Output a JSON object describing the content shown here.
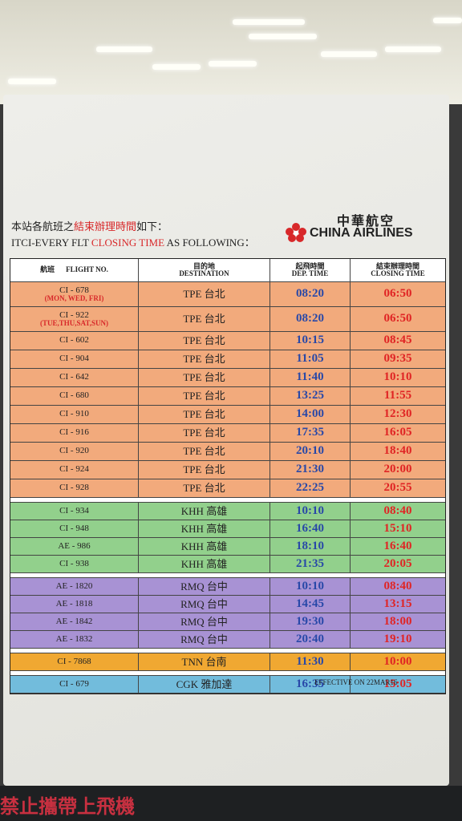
{
  "header": {
    "line1": [
      "本站各航班之",
      "結束辦理時間",
      "如下："
    ],
    "line2": [
      "ITCI-EVERY FLT ",
      "CLOSING TIME",
      " AS FOLLOWING："
    ]
  },
  "logo": {
    "zh": "中華航空",
    "en": "CHINA AIRLINES"
  },
  "table": {
    "columns": [
      {
        "zh": "航班",
        "en": "FLIGHT NO."
      },
      {
        "zh": "目的地",
        "en": "DESTINATION"
      },
      {
        "zh": "起飛時間",
        "en": "DEP. TIME"
      },
      {
        "zh": "結束辦理時間",
        "en": "CLOSING TIME"
      }
    ],
    "groups": [
      {
        "color": "#f2aa7c",
        "rows": [
          {
            "flight": "CI - 678",
            "note": "(MON, WED, FRI)",
            "dest": "TPE 台北",
            "dep": "08:20",
            "close": "06:50"
          },
          {
            "flight": "CI - 922",
            "note": "(TUE,THU,SAT,SUN)",
            "dest": "TPE 台北",
            "dep": "08:20",
            "close": "06:50"
          },
          {
            "flight": "CI - 602",
            "dest": "TPE 台北",
            "dep": "10:15",
            "close": "08:45"
          },
          {
            "flight": "CI - 904",
            "dest": "TPE 台北",
            "dep": "11:05",
            "close": "09:35"
          },
          {
            "flight": "CI - 642",
            "dest": "TPE 台北",
            "dep": "11:40",
            "close": "10:10"
          },
          {
            "flight": "CI - 680",
            "dest": "TPE 台北",
            "dep": "13:25",
            "close": "11:55"
          },
          {
            "flight": "CI - 910",
            "dest": "TPE 台北",
            "dep": "14:00",
            "close": "12:30"
          },
          {
            "flight": "CI - 916",
            "dest": "TPE 台北",
            "dep": "17:35",
            "close": "16:05"
          },
          {
            "flight": "CI - 920",
            "dest": "TPE 台北",
            "dep": "20:10",
            "close": "18:40"
          },
          {
            "flight": "CI - 924",
            "dest": "TPE 台北",
            "dep": "21:30",
            "close": "20:00"
          },
          {
            "flight": "CI - 928",
            "dest": "TPE 台北",
            "dep": "22:25",
            "close": "20:55"
          }
        ]
      },
      {
        "color": "#92d08c",
        "rows": [
          {
            "flight": "CI - 934",
            "dest": "KHH 高雄",
            "dep": "10:10",
            "close": "08:40"
          },
          {
            "flight": "CI - 948",
            "dest": "KHH 高雄",
            "dep": "16:40",
            "close": "15:10"
          },
          {
            "flight": "AE - 986",
            "dest": "KHH 高雄",
            "dep": "18:10",
            "close": "16:40"
          },
          {
            "flight": "CI - 938",
            "dest": "KHH 高雄",
            "dep": "21:35",
            "close": "20:05"
          }
        ]
      },
      {
        "color": "#a892d4",
        "rows": [
          {
            "flight": "AE - 1820",
            "dest": "RMQ 台中",
            "dep": "10:10",
            "close": "08:40"
          },
          {
            "flight": "AE - 1818",
            "dest": "RMQ 台中",
            "dep": "14:45",
            "close": "13:15"
          },
          {
            "flight": "AE - 1842",
            "dest": "RMQ 台中",
            "dep": "19:30",
            "close": "18:00"
          },
          {
            "flight": "AE - 1832",
            "dest": "RMQ 台中",
            "dep": "20:40",
            "close": "19:10"
          }
        ]
      },
      {
        "color": "#f0a832",
        "rows": [
          {
            "flight": "CI - 7868",
            "dest": "TNN 台南",
            "dep": "11:30",
            "close": "10:00"
          }
        ]
      },
      {
        "color": "#72bcdc",
        "rows": [
          {
            "flight": "CI - 679",
            "dest": "CGK 雅加達",
            "dep": "16:35",
            "close": "15:05"
          }
        ]
      }
    ]
  },
  "footer": "EFFECTIVE ON 22MAR16",
  "bottom_sign": "禁止攜帶上飛機"
}
